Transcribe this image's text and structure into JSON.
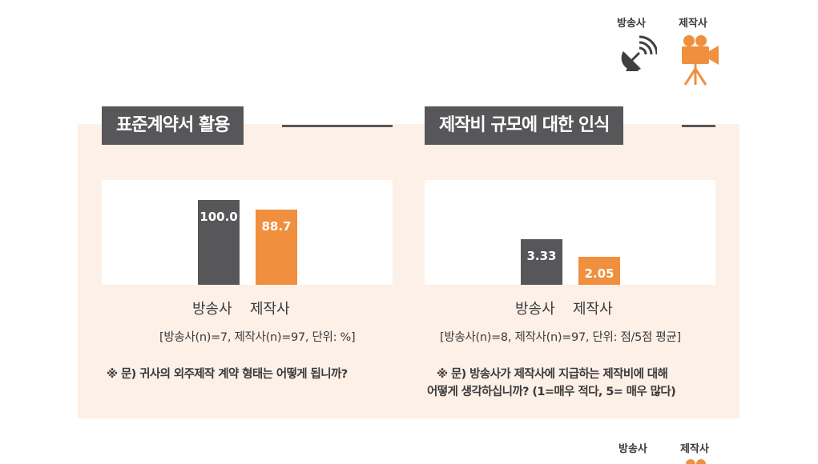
{
  "legend": {
    "broadcaster_label": "방송사",
    "producer_label": "제작사",
    "broadcaster_icon": "satellite-dish-icon",
    "producer_icon": "video-camera-icon"
  },
  "colors": {
    "broadcaster": "#57575a",
    "producer": "#f08f3e",
    "panel_background": "#fdf0e6"
  },
  "panels": [
    {
      "title": "표준계약서 활용",
      "categories": [
        "방송사",
        "제작사"
      ],
      "value_labels": [
        "100.0",
        "88.7"
      ],
      "note": "[방송사(n)=7, 제작사(n)=97, 단위: %]",
      "question_lines": [
        "※ 문) 귀사의 외주제작 계약 형태는 어떻게 됩니까?"
      ]
    },
    {
      "title": "제작비 규모에 대한 인식",
      "categories": [
        "방송사",
        "제작사"
      ],
      "value_labels": [
        "3.33",
        "2.05"
      ],
      "note": "[방송사(n)=8, 제작사(n)=97, 단위: 점/5점 평균]",
      "question_lines": [
        "※ 문) 방송사가 제작사에 지급하는 제작비에 대해",
        "어떻게 생각하십니까? (1=매우 적다, 5= 매우 많다)"
      ]
    }
  ],
  "chart_data": [
    {
      "type": "bar",
      "title": "표준계약서 활용",
      "categories": [
        "방송사",
        "제작사"
      ],
      "values": [
        100.0,
        88.7
      ],
      "unit": "%",
      "ylim": [
        0,
        100
      ]
    },
    {
      "type": "bar",
      "title": "제작비 규모에 대한 인식",
      "categories": [
        "방송사",
        "제작사"
      ],
      "values": [
        3.33,
        2.05
      ],
      "unit": "점/5점 평균",
      "ylim": [
        0,
        5
      ]
    }
  ],
  "bottom_legend": {
    "broadcaster_label": "방송사",
    "producer_label": "제작사"
  }
}
